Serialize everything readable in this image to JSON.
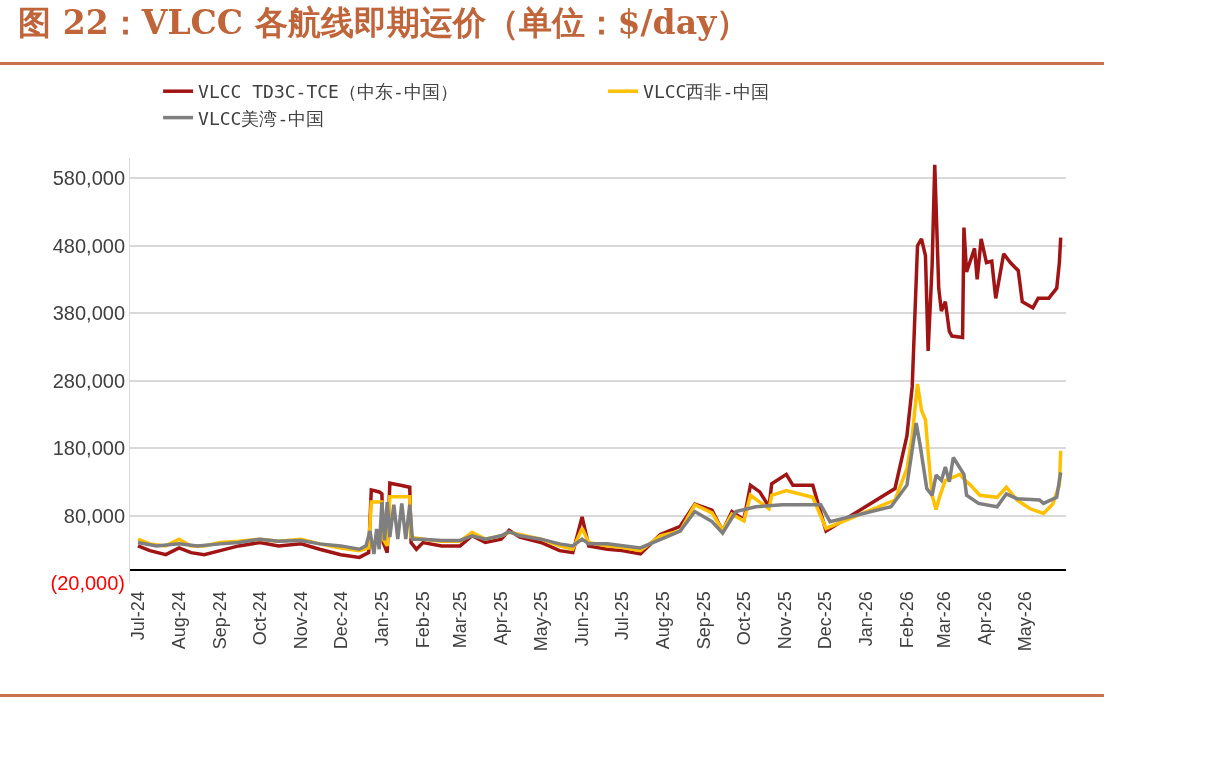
{
  "chart_data": {
    "type": "line",
    "title": "图 22：VLCC 各航线即期运价（单位：$/day）",
    "series": [
      {
        "name": "VLCC TD3C-TCE（中东-中国）",
        "color": "#a11414",
        "x": [
          "2024-07-01",
          "2024-07-10",
          "2024-07-22",
          "2024-08-01",
          "2024-08-10",
          "2024-08-20",
          "2024-09-01",
          "2024-09-15",
          "2024-10-01",
          "2024-10-15",
          "2024-11-01",
          "2024-11-15",
          "2024-12-01",
          "2024-12-15",
          "2024-12-22",
          "2024-12-24",
          "2024-12-30",
          "2025-01-01",
          "2025-01-02",
          "2025-01-05",
          "2025-01-07",
          "2025-01-15",
          "2025-01-22",
          "2025-01-23",
          "2025-01-27",
          "2025-02-01",
          "2025-02-15",
          "2025-03-01",
          "2025-03-10",
          "2025-03-20",
          "2025-04-01",
          "2025-04-07",
          "2025-04-15",
          "2025-05-01",
          "2025-05-15",
          "2025-05-25",
          "2025-06-01",
          "2025-06-06",
          "2025-06-20",
          "2025-07-01",
          "2025-07-15",
          "2025-07-30",
          "2025-08-14",
          "2025-08-25",
          "2025-09-07",
          "2025-09-15",
          "2025-09-22",
          "2025-10-01",
          "2025-10-06",
          "2025-10-13",
          "2025-10-20",
          "2025-10-22",
          "2025-11-02",
          "2025-11-07",
          "2025-11-22",
          "2025-12-02",
          "2026-01-23",
          "2026-02-01",
          "2026-02-05",
          "2026-02-09",
          "2026-02-12",
          "2026-02-15",
          "2026-02-17",
          "2026-02-20",
          "2026-02-22",
          "2026-02-25",
          "2026-02-27",
          "2026-03-02",
          "2026-03-05",
          "2026-03-07",
          "2026-03-15",
          "2026-03-16",
          "2026-03-18",
          "2026-03-24",
          "2026-03-26",
          "2026-03-29",
          "2026-04-02",
          "2026-04-06",
          "2026-04-09",
          "2026-04-15",
          "2026-04-20",
          "2026-04-26",
          "2026-04-29",
          "2026-05-07",
          "2026-05-11",
          "2026-05-19",
          "2026-05-25",
          "2026-05-27",
          "2026-05-28"
        ],
        "values": [
          35000,
          28000,
          22000,
          32000,
          25000,
          22000,
          28000,
          35000,
          40000,
          35000,
          38000,
          30000,
          22000,
          18000,
          25000,
          118000,
          115000,
          112000,
          40000,
          25000,
          128000,
          125000,
          122000,
          40000,
          30000,
          40000,
          35000,
          35000,
          50000,
          40000,
          45000,
          58000,
          48000,
          40000,
          28000,
          25000,
          78000,
          35000,
          30000,
          28000,
          23000,
          52000,
          64000,
          97000,
          88000,
          57000,
          86000,
          74000,
          125000,
          115000,
          93000,
          127000,
          141000,
          125000,
          125000,
          57000,
          120000,
          198000,
          271000,
          480000,
          490000,
          465000,
          324000,
          450000,
          600000,
          417000,
          383000,
          397000,
          353000,
          346000,
          344000,
          507000,
          441000,
          476000,
          430000,
          490000,
          455000,
          457000,
          402000,
          468000,
          455000,
          443000,
          397000,
          388000,
          402000,
          402000,
          417000,
          455000,
          492000
        ]
      },
      {
        "name": "VLCC西非-中国",
        "color": "#ffc000",
        "x": [
          "2024-07-01",
          "2024-07-10",
          "2024-07-22",
          "2024-08-01",
          "2024-08-10",
          "2024-08-20",
          "2024-09-01",
          "2024-09-15",
          "2024-10-01",
          "2024-10-15",
          "2024-11-01",
          "2024-11-15",
          "2024-12-01",
          "2024-12-15",
          "2024-12-22",
          "2024-12-24",
          "2025-01-01",
          "2025-01-02",
          "2025-01-05",
          "2025-01-07",
          "2025-01-22",
          "2025-01-23",
          "2025-02-01",
          "2025-02-15",
          "2025-03-01",
          "2025-03-10",
          "2025-03-20",
          "2025-04-01",
          "2025-04-07",
          "2025-04-15",
          "2025-05-01",
          "2025-05-15",
          "2025-05-25",
          "2025-06-01",
          "2025-06-06",
          "2025-06-20",
          "2025-07-01",
          "2025-07-15",
          "2025-07-30",
          "2025-08-14",
          "2025-08-25",
          "2025-09-07",
          "2025-09-15",
          "2025-09-22",
          "2025-10-01",
          "2025-10-06",
          "2025-10-13",
          "2025-10-20",
          "2025-10-22",
          "2025-11-02",
          "2025-11-22",
          "2025-12-02",
          "2026-01-23",
          "2026-02-01",
          "2026-02-05",
          "2026-02-09",
          "2026-02-12",
          "2026-02-15",
          "2026-02-17",
          "2026-02-20",
          "2026-02-23",
          "2026-02-26",
          "2026-03-02",
          "2026-03-08",
          "2026-03-13",
          "2026-03-16",
          "2026-03-21",
          "2026-03-28",
          "2026-04-10",
          "2026-04-17",
          "2026-04-25",
          "2026-05-05",
          "2026-05-15",
          "2026-05-22",
          "2026-05-27",
          "2026-05-28"
        ],
        "values": [
          45000,
          38000,
          35000,
          45000,
          35000,
          35000,
          40000,
          42000,
          45000,
          42000,
          45000,
          38000,
          32000,
          28000,
          32000,
          100000,
          100000,
          45000,
          35000,
          108000,
          108000,
          48000,
          45000,
          42000,
          42000,
          55000,
          45000,
          50000,
          55000,
          52000,
          45000,
          35000,
          30000,
          61000,
          40000,
          35000,
          33000,
          28000,
          50000,
          57000,
          96000,
          84000,
          58000,
          82000,
          72000,
          110000,
          100000,
          90000,
          110000,
          117000,
          107000,
          61000,
          103000,
          149000,
          198000,
          275000,
          236000,
          222000,
          174000,
          110000,
          89000,
          110000,
          132000,
          137000,
          141000,
          134000,
          125000,
          110000,
          107000,
          122000,
          103000,
          90000,
          83000,
          97000,
          125000,
          176000
        ]
      },
      {
        "name": "VLCC美湾-中国",
        "color": "#7f7f7f",
        "x": [
          "2024-07-01",
          "2024-07-15",
          "2024-08-01",
          "2024-08-15",
          "2024-09-01",
          "2024-09-15",
          "2024-10-01",
          "2024-10-15",
          "2024-11-01",
          "2024-11-15",
          "2024-12-01",
          "2024-12-15",
          "2024-12-20",
          "2024-12-23",
          "2024-12-26",
          "2024-12-28",
          "2024-12-30",
          "2025-01-01",
          "2025-01-03",
          "2025-01-05",
          "2025-01-07",
          "2025-01-10",
          "2025-01-13",
          "2025-01-16",
          "2025-01-19",
          "2025-01-22",
          "2025-01-24",
          "2025-02-01",
          "2025-02-15",
          "2025-03-01",
          "2025-03-10",
          "2025-03-20",
          "2025-04-01",
          "2025-04-07",
          "2025-04-15",
          "2025-05-01",
          "2025-05-15",
          "2025-05-25",
          "2025-06-01",
          "2025-06-06",
          "2025-06-20",
          "2025-07-15",
          "2025-08-14",
          "2025-08-25",
          "2025-09-07",
          "2025-09-15",
          "2025-09-25",
          "2025-10-10",
          "2025-10-30",
          "2025-11-28",
          "2025-12-05",
          "2026-01-20",
          "2026-02-01",
          "2026-02-08",
          "2026-02-11",
          "2026-02-16",
          "2026-02-20",
          "2026-02-23",
          "2026-02-27",
          "2026-03-02",
          "2026-03-05",
          "2026-03-08",
          "2026-03-16",
          "2026-03-18",
          "2026-03-27",
          "2026-04-10",
          "2026-04-17",
          "2026-04-25",
          "2026-05-12",
          "2026-05-15",
          "2026-05-25",
          "2026-05-28"
        ],
        "values": [
          40000,
          35000,
          38000,
          35000,
          38000,
          40000,
          45000,
          42000,
          43000,
          38000,
          35000,
          30000,
          35000,
          57000,
          23000,
          60000,
          30000,
          100000,
          43000,
          100000,
          48000,
          96000,
          45000,
          98000,
          45000,
          96000,
          45000,
          45000,
          43000,
          43000,
          50000,
          45000,
          50000,
          56000,
          50000,
          45000,
          38000,
          35000,
          45000,
          38000,
          38000,
          32000,
          57000,
          86000,
          71000,
          54000,
          86000,
          93000,
          96000,
          96000,
          71000,
          93000,
          125000,
          217000,
          184000,
          120000,
          110000,
          140000,
          132000,
          152000,
          130000,
          166000,
          141000,
          110000,
          98000,
          93000,
          112000,
          105000,
          103000,
          98000,
          107000,
          144000
        ]
      }
    ],
    "xlim": [
      "2024-06-25",
      "2026-06-01"
    ],
    "xticks": [
      {
        "value": "2024-07-01",
        "label": "Jul-24"
      },
      {
        "value": "2024-08-01",
        "label": "Aug-24"
      },
      {
        "value": "2024-09-01",
        "label": "Sep-24"
      },
      {
        "value": "2024-10-01",
        "label": "Oct-24"
      },
      {
        "value": "2024-11-01",
        "label": "Nov-24"
      },
      {
        "value": "2024-12-01",
        "label": "Dec-24"
      },
      {
        "value": "2025-01-01",
        "label": "Jan-25"
      },
      {
        "value": "2025-02-01",
        "label": "Feb-25"
      },
      {
        "value": "2025-03-01",
        "label": "Mar-25"
      },
      {
        "value": "2025-04-01",
        "label": "Apr-25"
      },
      {
        "value": "2025-05-01",
        "label": "May-25"
      },
      {
        "value": "2025-06-01",
        "label": "Jun-25"
      },
      {
        "value": "2025-07-01",
        "label": "Jul-25"
      },
      {
        "value": "2025-08-01",
        "label": "Aug-25"
      },
      {
        "value": "2025-09-01",
        "label": "Sep-25"
      },
      {
        "value": "2025-10-01",
        "label": "Oct-25"
      },
      {
        "value": "2025-11-01",
        "label": "Nov-25"
      },
      {
        "value": "2025-12-01",
        "label": "Dec-25"
      },
      {
        "value": "2026-01-01",
        "label": "Jan-26"
      },
      {
        "value": "2026-02-01",
        "label": "Feb-26"
      },
      {
        "value": "2026-03-01",
        "label": "Mar-26"
      },
      {
        "value": "2026-04-01",
        "label": "Apr-26"
      },
      {
        "value": "2026-05-01",
        "label": "May-26"
      }
    ],
    "ylim": [
      -20000,
      610000
    ],
    "yticks": [
      {
        "value": -20000,
        "label": "(20,000)"
      },
      {
        "value": 80000,
        "label": "80,000"
      },
      {
        "value": 180000,
        "label": "180,000"
      },
      {
        "value": 280000,
        "label": "280,000"
      },
      {
        "value": 380000,
        "label": "380,000"
      },
      {
        "value": 480000,
        "label": "480,000"
      },
      {
        "value": 580000,
        "label": "580,000"
      }
    ],
    "grid": "y",
    "legend": "top left",
    "marker": "none",
    "line_style": "solid"
  }
}
